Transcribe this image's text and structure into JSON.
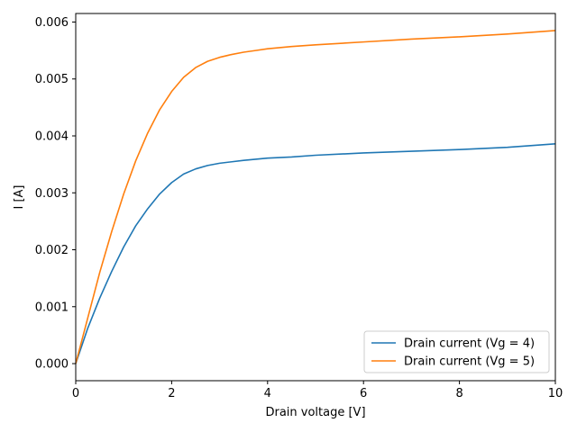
{
  "chart_data": {
    "type": "line",
    "title": "",
    "xlabel": "Drain voltage [V]",
    "ylabel": "I [A]",
    "xlim": [
      0,
      10
    ],
    "ylim": [
      -0.0003,
      0.00615
    ],
    "x_ticks": [
      0,
      2,
      4,
      6,
      8,
      10
    ],
    "x_tick_labels": [
      "0",
      "2",
      "4",
      "6",
      "8",
      "10"
    ],
    "y_ticks": [
      0.0,
      0.001,
      0.002,
      0.003,
      0.004,
      0.005,
      0.006
    ],
    "y_tick_labels": [
      "0.000",
      "0.001",
      "0.002",
      "0.003",
      "0.004",
      "0.005",
      "0.006"
    ],
    "grid": false,
    "legend_position": "lower-right",
    "series": [
      {
        "name": "Drain current (Vg = 4)",
        "color": "#1f77b4",
        "x": [
          0,
          0.25,
          0.5,
          0.75,
          1.0,
          1.25,
          1.5,
          1.75,
          2.0,
          2.25,
          2.5,
          2.75,
          3.0,
          3.5,
          4.0,
          4.5,
          5.0,
          6.0,
          7.0,
          8.0,
          9.0,
          10.0
        ],
        "values": [
          0.0,
          0.00062,
          0.00115,
          0.00162,
          0.00205,
          0.00242,
          0.00272,
          0.00298,
          0.00318,
          0.00333,
          0.00342,
          0.00348,
          0.00352,
          0.00357,
          0.00361,
          0.00363,
          0.00366,
          0.0037,
          0.00373,
          0.00376,
          0.0038,
          0.00386
        ]
      },
      {
        "name": "Drain current (Vg = 5)",
        "color": "#ff7f0e",
        "x": [
          0,
          0.25,
          0.5,
          0.75,
          1.0,
          1.25,
          1.5,
          1.75,
          2.0,
          2.25,
          2.5,
          2.75,
          3.0,
          3.25,
          3.5,
          3.75,
          4.0,
          4.5,
          5.0,
          6.0,
          7.0,
          8.0,
          9.0,
          10.0
        ],
        "values": [
          0.0,
          0.0008,
          0.0016,
          0.00232,
          0.00298,
          0.00356,
          0.00405,
          0.00446,
          0.00478,
          0.00503,
          0.0052,
          0.00531,
          0.00538,
          0.00543,
          0.00547,
          0.0055,
          0.00553,
          0.00557,
          0.0056,
          0.00565,
          0.0057,
          0.00574,
          0.00579,
          0.00585
        ]
      }
    ]
  }
}
